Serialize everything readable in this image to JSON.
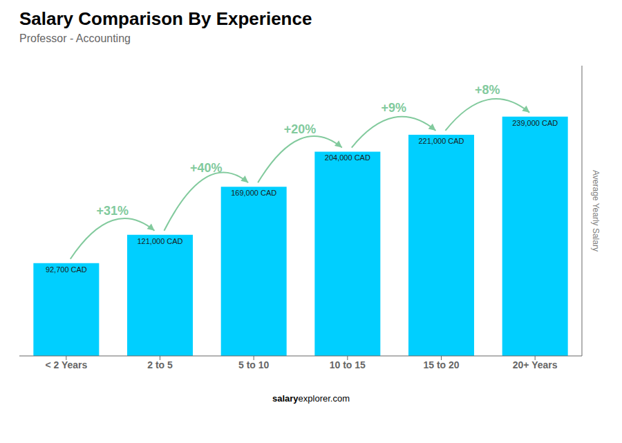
{
  "chart_data": {
    "type": "bar",
    "title": "Salary Comparison By Experience",
    "subtitle": "Professor - Accounting",
    "y_label": "Average Yearly Salary",
    "categories": [
      "< 2 Years",
      "2 to 5",
      "5 to 10",
      "10 to 15",
      "15 to 20",
      "20+ Years"
    ],
    "values": [
      92700,
      121000,
      169000,
      204000,
      221000,
      239000
    ],
    "value_labels": [
      "92,700 CAD",
      "121,000 CAD",
      "169,000 CAD",
      "204,000 CAD",
      "221,000 CAD",
      "239,000 CAD"
    ],
    "data_labels": true,
    "annotations": [
      "+31%",
      "+40%",
      "+20%",
      "+9%",
      "+8%"
    ],
    "watermark": [
      "salary",
      "explorer.com"
    ],
    "color": "#00CFFF",
    "ylim": [
      0,
      290000
    ],
    "tick_labels": "x"
  }
}
